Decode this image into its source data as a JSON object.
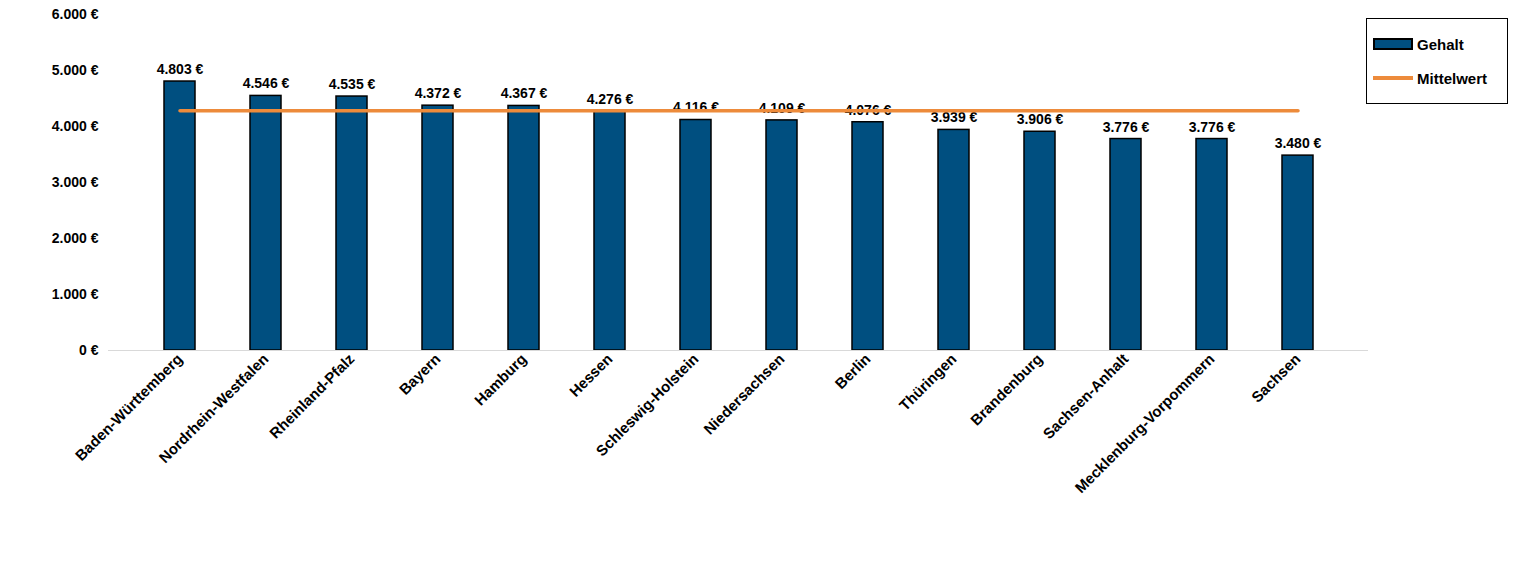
{
  "chart_data": {
    "type": "bar",
    "categories": [
      "Baden-Württemberg",
      "Nordrhein-Westfalen",
      "Rheinland-Pfalz",
      "Bayern",
      "Hamburg",
      "Hessen",
      "Schleswig-Holstein",
      "Niedersachsen",
      "Berlin",
      "Thüringen",
      "Brandenburg",
      "Sachsen-Anhalt",
      "Mecklenburg-Vorpommern",
      "Sachsen"
    ],
    "series": [
      {
        "name": "Gehalt",
        "type": "bar",
        "color": "#004f80",
        "values": [
          4803,
          4546,
          4535,
          4372,
          4367,
          4276,
          4116,
          4109,
          4076,
          3939,
          3906,
          3776,
          3776,
          3480
        ],
        "value_labels": [
          "4.803 €",
          "4.546 €",
          "4.535 €",
          "4.372 €",
          "4.367 €",
          "4.276 €",
          "4.116 €",
          "4.109 €",
          "4.076 €",
          "3.939 €",
          "3.906 €",
          "3.776 €",
          "3.776 €",
          "3.480 €"
        ]
      },
      {
        "name": "Mittelwert",
        "type": "line",
        "color": "#ed8b3b",
        "values": [
          4280,
          4280,
          4280,
          4280,
          4280,
          4280,
          4280,
          4280,
          4280,
          4280,
          4280,
          4280,
          4280,
          4280
        ]
      }
    ],
    "ylim": [
      0,
      6000
    ],
    "yticks": [
      {
        "value": 0,
        "label": "0 €"
      },
      {
        "value": 1000,
        "label": "1.000 €"
      },
      {
        "value": 2000,
        "label": "2.000 €"
      },
      {
        "value": 3000,
        "label": "3.000 €"
      },
      {
        "value": 4000,
        "label": "4.000 €"
      },
      {
        "value": 5000,
        "label": "5.000 €"
      },
      {
        "value": 6000,
        "label": "6.000 €"
      }
    ],
    "grid": false,
    "legend": "top-right",
    "data_labels": true
  }
}
